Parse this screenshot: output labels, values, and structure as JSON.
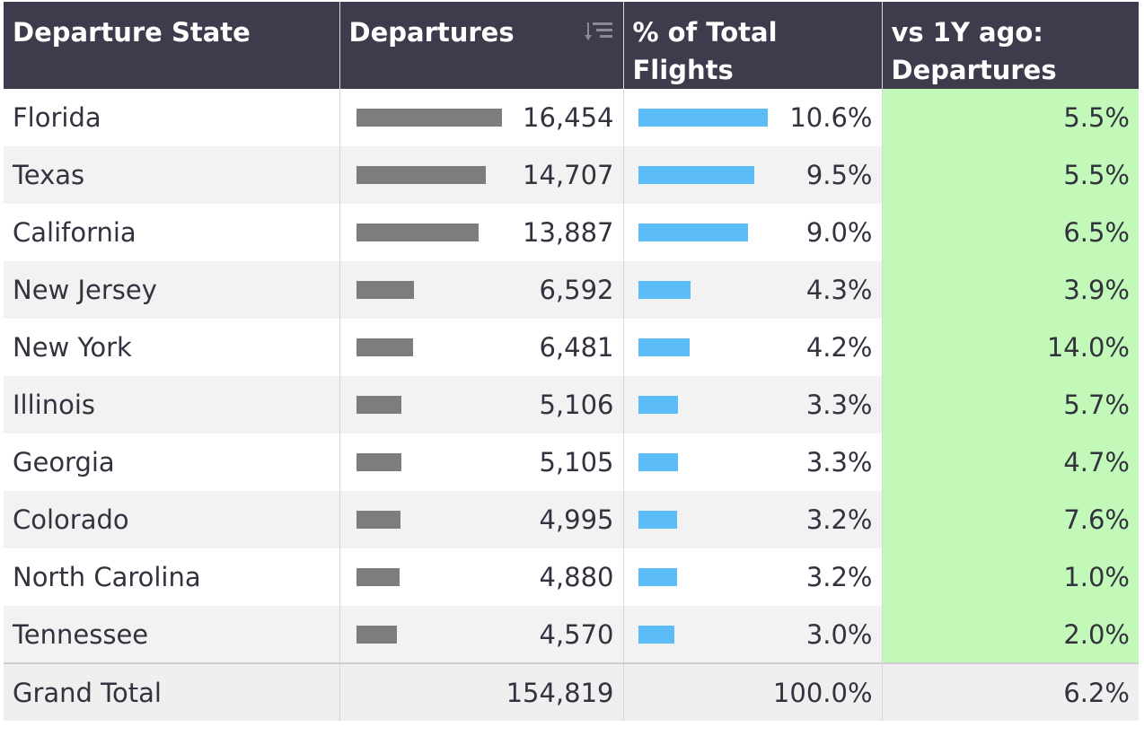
{
  "table": {
    "headers": {
      "state": "Departure State",
      "departures": "Departures",
      "pct_line1": "% of Total",
      "pct_line2": "Flights",
      "vs_line1": "vs 1Y ago:",
      "vs_line2": "Departures"
    },
    "icons": {
      "sort": "sort-descending-icon"
    },
    "colors": {
      "header_bg": "#3c3c4c",
      "departures_bar": "#7d7d7d",
      "pct_bar": "#5bbcf7",
      "vs_bg": "#c3f9b8"
    },
    "rows": [
      {
        "state": "Florida",
        "departures": "16,454",
        "pct": "10.6%",
        "vs": "5.5%"
      },
      {
        "state": "Texas",
        "departures": "14,707",
        "pct": "9.5%",
        "vs": "5.5%"
      },
      {
        "state": "California",
        "departures": "13,887",
        "pct": "9.0%",
        "vs": "6.5%"
      },
      {
        "state": "New Jersey",
        "departures": "6,592",
        "pct": "4.3%",
        "vs": "3.9%"
      },
      {
        "state": "New York",
        "departures": "6,481",
        "pct": "4.2%",
        "vs": "14.0%"
      },
      {
        "state": "Illinois",
        "departures": "5,106",
        "pct": "3.3%",
        "vs": "5.7%"
      },
      {
        "state": "Georgia",
        "departures": "5,105",
        "pct": "3.3%",
        "vs": "4.7%"
      },
      {
        "state": "Colorado",
        "departures": "4,995",
        "pct": "3.2%",
        "vs": "7.6%"
      },
      {
        "state": "North Carolina",
        "departures": "4,880",
        "pct": "3.2%",
        "vs": "1.0%"
      },
      {
        "state": "Tennessee",
        "departures": "4,570",
        "pct": "3.0%",
        "vs": "2.0%"
      }
    ],
    "total": {
      "label": "Grand Total",
      "departures": "154,819",
      "pct": "100.0%",
      "vs": "6.2%"
    }
  },
  "chart_data": {
    "type": "table",
    "columns": [
      "Departure State",
      "Departures",
      "% of Total Flights",
      "vs 1Y ago: Departures"
    ],
    "categories": [
      "Florida",
      "Texas",
      "California",
      "New Jersey",
      "New York",
      "Illinois",
      "Georgia",
      "Colorado",
      "North Carolina",
      "Tennessee"
    ],
    "series": [
      {
        "name": "Departures",
        "values": [
          16454,
          14707,
          13887,
          6592,
          6481,
          5106,
          5105,
          4995,
          4880,
          4570
        ]
      },
      {
        "name": "% of Total Flights",
        "values": [
          10.6,
          9.5,
          9.0,
          4.3,
          4.2,
          3.3,
          3.3,
          3.2,
          3.2,
          3.0
        ]
      },
      {
        "name": "vs 1Y ago: Departures",
        "values": [
          5.5,
          5.5,
          6.5,
          3.9,
          14.0,
          5.7,
          4.7,
          7.6,
          1.0,
          2.0
        ]
      }
    ],
    "totals": {
      "Departures": 154819,
      "% of Total Flights": 100.0,
      "vs 1Y ago: Departures": 6.2
    }
  }
}
